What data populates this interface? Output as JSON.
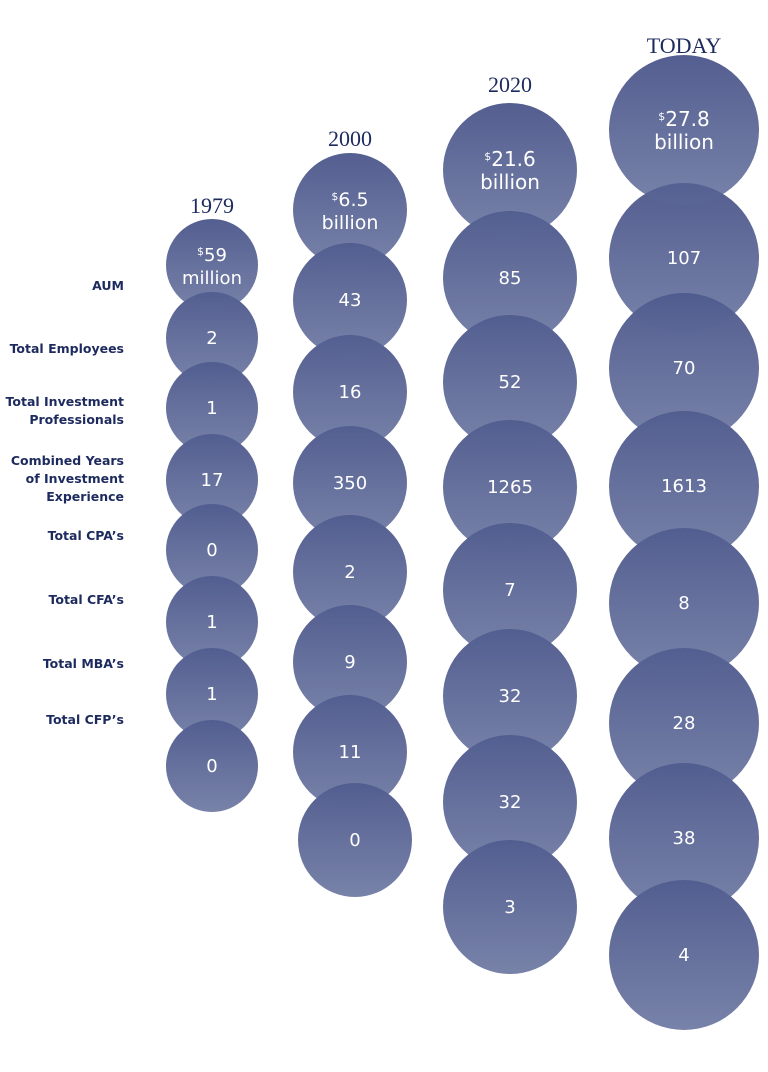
{
  "rows": [
    [
      "AUM"
    ],
    [
      "Total Employees"
    ],
    [
      "Total Investment",
      "Professionals"
    ],
    [
      "Combined Years",
      "of Investment",
      "Experience"
    ],
    [
      "Total CPA’s"
    ],
    [
      "Total CFA’s"
    ],
    [
      "Total MBA’s"
    ],
    [
      "Total CFP’s"
    ]
  ],
  "columns": [
    {
      "year": "1979",
      "aum": {
        "currency": "$",
        "amount": "59",
        "unit": "million"
      },
      "values": [
        2,
        1,
        17,
        0,
        1,
        1,
        0
      ]
    },
    {
      "year": "2000",
      "aum": {
        "currency": "$",
        "amount": "6.5",
        "unit": "billion"
      },
      "values": [
        43,
        16,
        350,
        2,
        9,
        11,
        0
      ]
    },
    {
      "year": "2020",
      "aum": {
        "currency": "$",
        "amount": "21.6",
        "unit": "billion"
      },
      "values": [
        85,
        52,
        1265,
        7,
        32,
        32,
        3
      ]
    },
    {
      "year": "TODAY",
      "aum": {
        "currency": "$",
        "amount": "27.8",
        "unit": "billion"
      },
      "values": [
        107,
        70,
        1613,
        8,
        28,
        38,
        4
      ]
    }
  ]
}
